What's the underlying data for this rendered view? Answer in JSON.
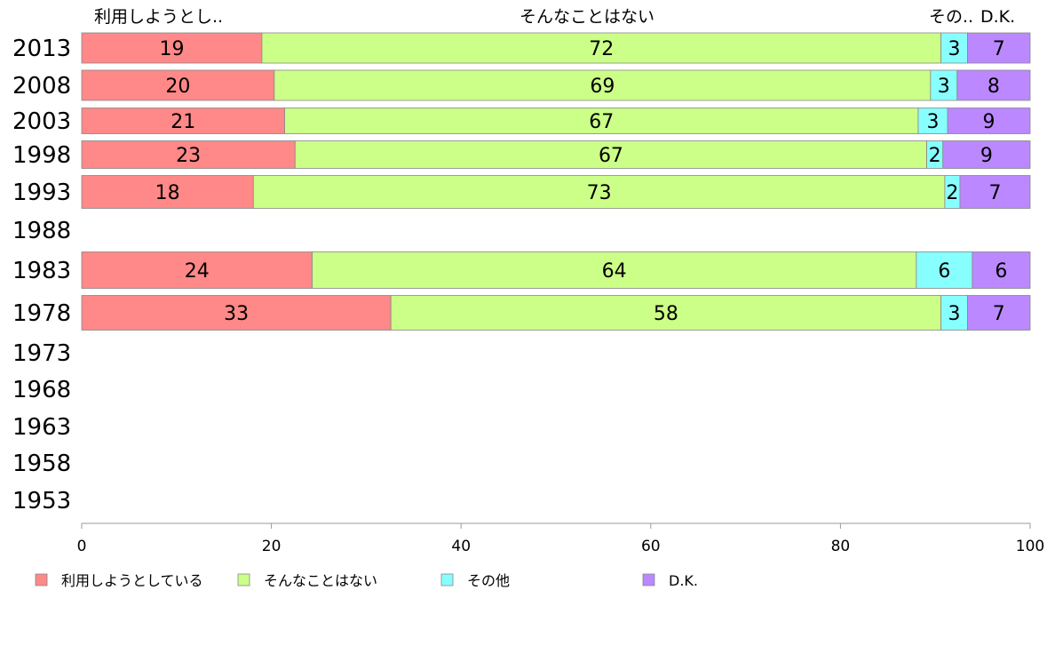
{
  "chart_data": {
    "type": "bar",
    "orientation": "horizontal-stacked",
    "categories": [
      "2013",
      "2008",
      "2003",
      "1998",
      "1993",
      "1988",
      "1983",
      "1978",
      "1973",
      "1968",
      "1963",
      "1958",
      "1953"
    ],
    "series": [
      {
        "name": "利用しようとしている",
        "header": "利用しようとし..",
        "color": "#ff8888",
        "values": [
          19,
          20,
          21,
          23,
          18,
          null,
          24,
          33,
          null,
          null,
          null,
          null,
          null
        ],
        "exact": [
          19,
          20.3,
          21.4,
          22.5,
          18.1,
          null,
          24.3,
          32.6,
          null,
          null,
          null,
          null,
          null
        ]
      },
      {
        "name": "そんなことはない",
        "header": "そんなことはない",
        "color": "#ccff88",
        "values": [
          72,
          69,
          67,
          67,
          73,
          null,
          64,
          58,
          null,
          null,
          null,
          null,
          null
        ],
        "exact": [
          71.6,
          69.2,
          66.8,
          66.6,
          72.9,
          null,
          63.7,
          58.0,
          null,
          null,
          null,
          null,
          null
        ]
      },
      {
        "name": "その他",
        "header": "その..",
        "color": "#88ffff",
        "values": [
          3,
          3,
          3,
          2,
          2,
          null,
          6,
          3,
          null,
          null,
          null,
          null,
          null
        ],
        "exact": [
          2.8,
          2.8,
          3.1,
          1.7,
          1.6,
          null,
          5.9,
          2.8,
          null,
          null,
          null,
          null,
          null
        ]
      },
      {
        "name": "D.K.",
        "header": "D.K.",
        "color": "#bb88ff",
        "values": [
          7,
          8,
          9,
          9,
          7,
          null,
          6,
          7,
          null,
          null,
          null,
          null,
          null
        ],
        "exact": [
          6.6,
          7.7,
          8.7,
          9.2,
          7.4,
          null,
          6.1,
          6.6,
          null,
          null,
          null,
          null,
          null
        ]
      }
    ],
    "xlim": [
      0,
      100
    ],
    "xticks": [
      0,
      20,
      40,
      60,
      80,
      100
    ],
    "legend_position": "bottom",
    "grid": false
  }
}
